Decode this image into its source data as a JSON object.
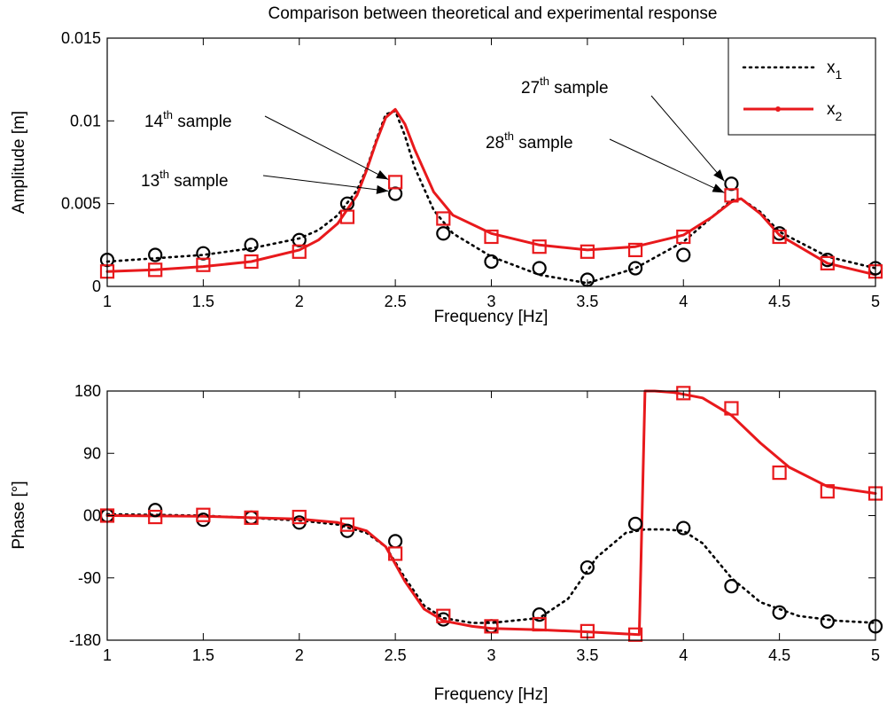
{
  "chart_data": [
    {
      "type": "line",
      "title": "Comparison between theoretical and experimental response",
      "xlabel": "Frequency [Hz]",
      "ylabel": "Amplitude [m]",
      "xlim": [
        1,
        5
      ],
      "ylim": [
        0,
        0.015
      ],
      "xticks": [
        1,
        1.5,
        2,
        2.5,
        3,
        3.5,
        4,
        4.5,
        5
      ],
      "xtick_labels": [
        "1",
        "1.5",
        "2",
        "2.5",
        "3",
        "3.5",
        "4",
        "4.5",
        "5"
      ],
      "yticks": [
        0,
        0.005,
        0.01,
        0.015
      ],
      "ytick_labels": [
        "0",
        "0.005",
        "0.01",
        "0.015"
      ],
      "grid": false,
      "legend": {
        "placement": "top-right",
        "entries": [
          {
            "name": "x",
            "sub": "1",
            "color": "#000000",
            "style": "dotted"
          },
          {
            "name": "x",
            "sub": "2",
            "color": "#e8191c",
            "style": "solid-dot"
          }
        ]
      },
      "series": [
        {
          "name": "x1",
          "kind": "theory",
          "color": "#000000",
          "style": "dotted",
          "x": [
            1,
            1.25,
            1.5,
            1.75,
            2,
            2.1,
            2.2,
            2.3,
            2.35,
            2.4,
            2.45,
            2.5,
            2.55,
            2.6,
            2.7,
            2.8,
            3,
            3.25,
            3.5,
            3.75,
            4,
            4.15,
            4.25,
            4.3,
            4.4,
            4.5,
            4.75,
            5
          ],
          "y": [
            0.0015,
            0.0017,
            0.0019,
            0.0023,
            0.0029,
            0.0034,
            0.0043,
            0.0058,
            0.0071,
            0.0088,
            0.0104,
            0.0106,
            0.0091,
            0.0072,
            0.0046,
            0.0032,
            0.0018,
            0.0007,
            0.0002,
            0.0011,
            0.0027,
            0.0042,
            0.0052,
            0.0053,
            0.0045,
            0.0033,
            0.0018,
            0.0011
          ]
        },
        {
          "name": "x2",
          "kind": "theory",
          "color": "#e8191c",
          "style": "solid",
          "x": [
            1,
            1.25,
            1.5,
            1.75,
            2,
            2.1,
            2.2,
            2.3,
            2.35,
            2.4,
            2.45,
            2.5,
            2.55,
            2.6,
            2.7,
            2.8,
            3,
            3.25,
            3.5,
            3.75,
            4,
            4.15,
            4.25,
            4.3,
            4.4,
            4.5,
            4.75,
            5
          ],
          "y": [
            0.0009,
            0.001,
            0.0012,
            0.0015,
            0.0022,
            0.0028,
            0.0038,
            0.0055,
            0.007,
            0.0087,
            0.0102,
            0.0107,
            0.0098,
            0.0083,
            0.0057,
            0.0043,
            0.0032,
            0.0025,
            0.0022,
            0.0024,
            0.0031,
            0.0042,
            0.0051,
            0.0053,
            0.0044,
            0.0031,
            0.0014,
            0.0007
          ]
        },
        {
          "name": "x1 samples",
          "kind": "samples",
          "marker": "circle",
          "color": "#000000",
          "x": [
            1,
            1.25,
            1.5,
            1.75,
            2,
            2.25,
            2.5,
            2.75,
            3,
            3.25,
            3.5,
            3.75,
            4,
            4.25,
            4.5,
            4.75,
            5
          ],
          "y": [
            0.0016,
            0.0019,
            0.002,
            0.0025,
            0.0028,
            0.005,
            0.0056,
            0.0032,
            0.0015,
            0.0011,
            0.0004,
            0.0011,
            0.0019,
            0.0062,
            0.0032,
            0.0016,
            0.0011
          ]
        },
        {
          "name": "x2 samples",
          "kind": "samples",
          "marker": "square",
          "color": "#e8191c",
          "x": [
            1,
            1.25,
            1.5,
            1.75,
            2,
            2.25,
            2.5,
            2.75,
            3,
            3.25,
            3.5,
            3.75,
            4,
            4.25,
            4.5,
            4.75,
            5
          ],
          "y": [
            0.0009,
            0.001,
            0.0013,
            0.0015,
            0.0021,
            0.0042,
            0.0063,
            0.0041,
            0.003,
            0.0024,
            0.0021,
            0.0022,
            0.003,
            0.0055,
            0.003,
            0.0014,
            0.0009
          ]
        }
      ],
      "annotations": [
        {
          "base": "14",
          "sup": "th",
          "rest": " sample",
          "target": [
            2.5,
            0.0063
          ]
        },
        {
          "base": "13",
          "sup": "th",
          "rest": " sample",
          "target": [
            2.5,
            0.0056
          ]
        },
        {
          "base": "27",
          "sup": "th",
          "rest": " sample",
          "target": [
            4.25,
            0.0062
          ]
        },
        {
          "base": "28",
          "sup": "th",
          "rest": " sample",
          "target": [
            4.25,
            0.0055
          ]
        }
      ]
    },
    {
      "type": "line",
      "title": "",
      "xlabel": "Frequency [Hz]",
      "ylabel": "Phase [°]",
      "xlim": [
        1,
        5
      ],
      "ylim": [
        -180,
        180
      ],
      "xticks": [
        1,
        1.5,
        2,
        2.5,
        3,
        3.5,
        4,
        4.5,
        5
      ],
      "xtick_labels": [
        "1",
        "1.5",
        "2",
        "2.5",
        "3",
        "3.5",
        "4",
        "4.5",
        "5"
      ],
      "yticks": [
        -180,
        -90,
        0,
        90,
        180
      ],
      "ytick_labels": [
        "-180",
        "-90",
        "00",
        "90",
        "180"
      ],
      "grid": false,
      "series": [
        {
          "name": "x1",
          "kind": "theory",
          "color": "#000000",
          "style": "dotted",
          "x": [
            1,
            1.5,
            2,
            2.2,
            2.35,
            2.45,
            2.55,
            2.65,
            2.75,
            2.9,
            3,
            3.25,
            3.4,
            3.55,
            3.7,
            3.8,
            3.9,
            4,
            4.1,
            4.25,
            4.4,
            4.6,
            4.8,
            5
          ],
          "y": [
            2,
            0,
            -7,
            -13,
            -25,
            -45,
            -90,
            -130,
            -148,
            -155,
            -155,
            -148,
            -120,
            -60,
            -25,
            -20,
            -20,
            -22,
            -40,
            -90,
            -125,
            -145,
            -152,
            -155
          ]
        },
        {
          "name": "x2",
          "kind": "theory",
          "color": "#e8191c",
          "style": "solid",
          "x": [
            1,
            1.5,
            2,
            2.2,
            2.35,
            2.45,
            2.55,
            2.65,
            2.75,
            2.9,
            3,
            3.25,
            3.5,
            3.77,
            3.8,
            3.85,
            3.95,
            4.1,
            4.25,
            4.4,
            4.55,
            4.75,
            5
          ],
          "y": [
            0,
            -1,
            -5,
            -10,
            -22,
            -45,
            -95,
            -135,
            -152,
            -160,
            -163,
            -165,
            -168,
            -172,
            180,
            180,
            178,
            170,
            145,
            105,
            70,
            42,
            32
          ]
        },
        {
          "name": "x1 samples",
          "kind": "samples",
          "marker": "circle",
          "color": "#000000",
          "x": [
            1,
            1.25,
            1.5,
            1.75,
            2,
            2.25,
            2.5,
            2.75,
            3,
            3.25,
            3.5,
            3.75,
            4,
            4.25,
            4.5,
            4.75,
            5
          ],
          "y": [
            0,
            8,
            -6,
            -3,
            -10,
            -22,
            -37,
            -150,
            -160,
            -143,
            -75,
            -12,
            -18,
            -102,
            -140,
            -153,
            -160
          ]
        },
        {
          "name": "x2 samples",
          "kind": "samples",
          "marker": "square",
          "color": "#e8191c",
          "x": [
            1,
            1.25,
            1.5,
            1.75,
            2,
            2.25,
            2.5,
            2.75,
            3,
            3.25,
            3.5,
            3.75,
            4,
            4.25,
            4.5,
            4.75,
            5
          ],
          "y": [
            0,
            -2,
            1,
            -3,
            -2,
            -13,
            -55,
            -145,
            -160,
            -157,
            -167,
            -172,
            177,
            155,
            62,
            35,
            32
          ]
        }
      ]
    }
  ]
}
